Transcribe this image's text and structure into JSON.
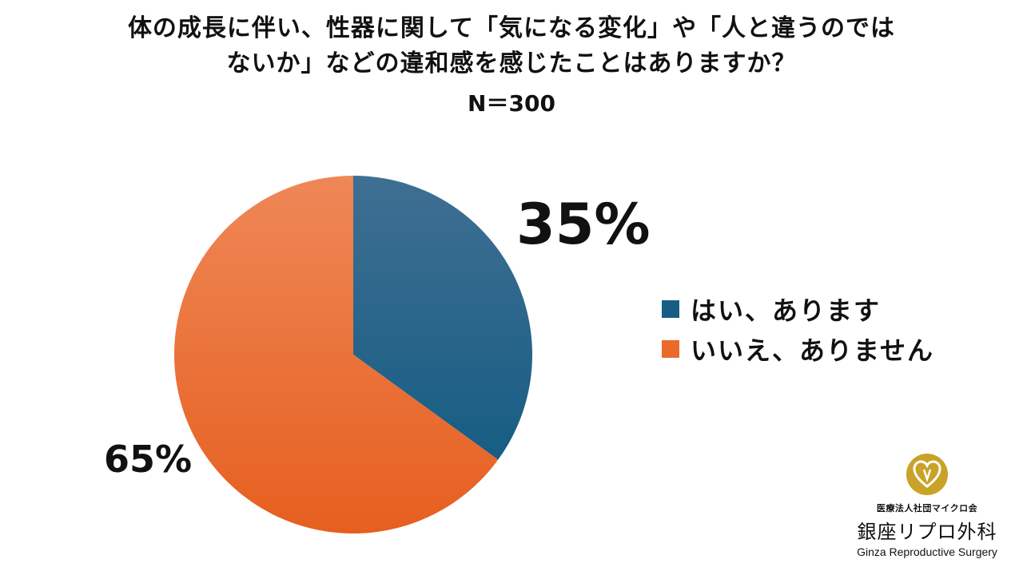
{
  "chart_data": {
    "type": "pie",
    "title_lines": [
      "体の成長に伴い、性器に関して「気になる変化」や「人と違うのでは",
      "ないか」などの違和感を感じたことはありますか？"
    ],
    "subtitle": "N＝300",
    "slices": [
      {
        "label": "はい、あります",
        "value": 35,
        "value_label": "35%",
        "color": "#175d84"
      },
      {
        "label": "いいえ、ありません",
        "value": 65,
        "value_label": "65%",
        "color": "#ea6a2a"
      }
    ],
    "legend_position": "right"
  },
  "logo": {
    "org": "医療法人社団マイクロ会",
    "name": "銀座リプロ外科",
    "name_en": "Ginza Reproductive Surgery"
  },
  "colors": {
    "yes_dark": "#175d84",
    "yes_light": "#3f6f92",
    "no_dark": "#e65f1f",
    "no_light": "#ef8757",
    "logo_gold": "#c9a227"
  }
}
